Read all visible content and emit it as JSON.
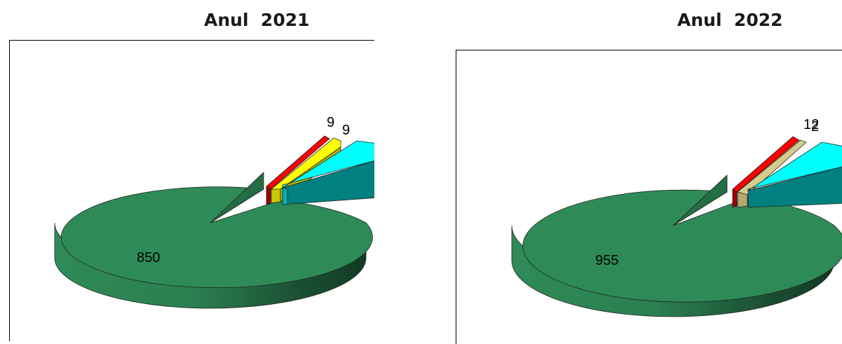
{
  "chart_data": [
    {
      "type": "pie",
      "title": "Anul  2021",
      "style": "3d-exploded",
      "slices": [
        {
          "value": 850,
          "label": "850",
          "color": "#2e8b57"
        },
        {
          "value": 9,
          "label": "9",
          "color": "#ff0000"
        },
        {
          "value": 9,
          "label": "9",
          "color": "#ffff00"
        },
        {
          "value": null,
          "label": "",
          "color": "#00ffff"
        }
      ]
    },
    {
      "type": "pie",
      "title": "Anul  2022",
      "style": "3d-exploded",
      "slices": [
        {
          "value": 955,
          "label": "955",
          "color": "#2e8b57"
        },
        {
          "value": 12,
          "label": "12",
          "color": "#ff0000"
        },
        {
          "value": null,
          "label": "",
          "color": "#d6cc8a"
        },
        {
          "value": null,
          "label": "",
          "color": "#00ffff"
        }
      ],
      "overlapping_labels": [
        "12",
        "2"
      ]
    }
  ]
}
